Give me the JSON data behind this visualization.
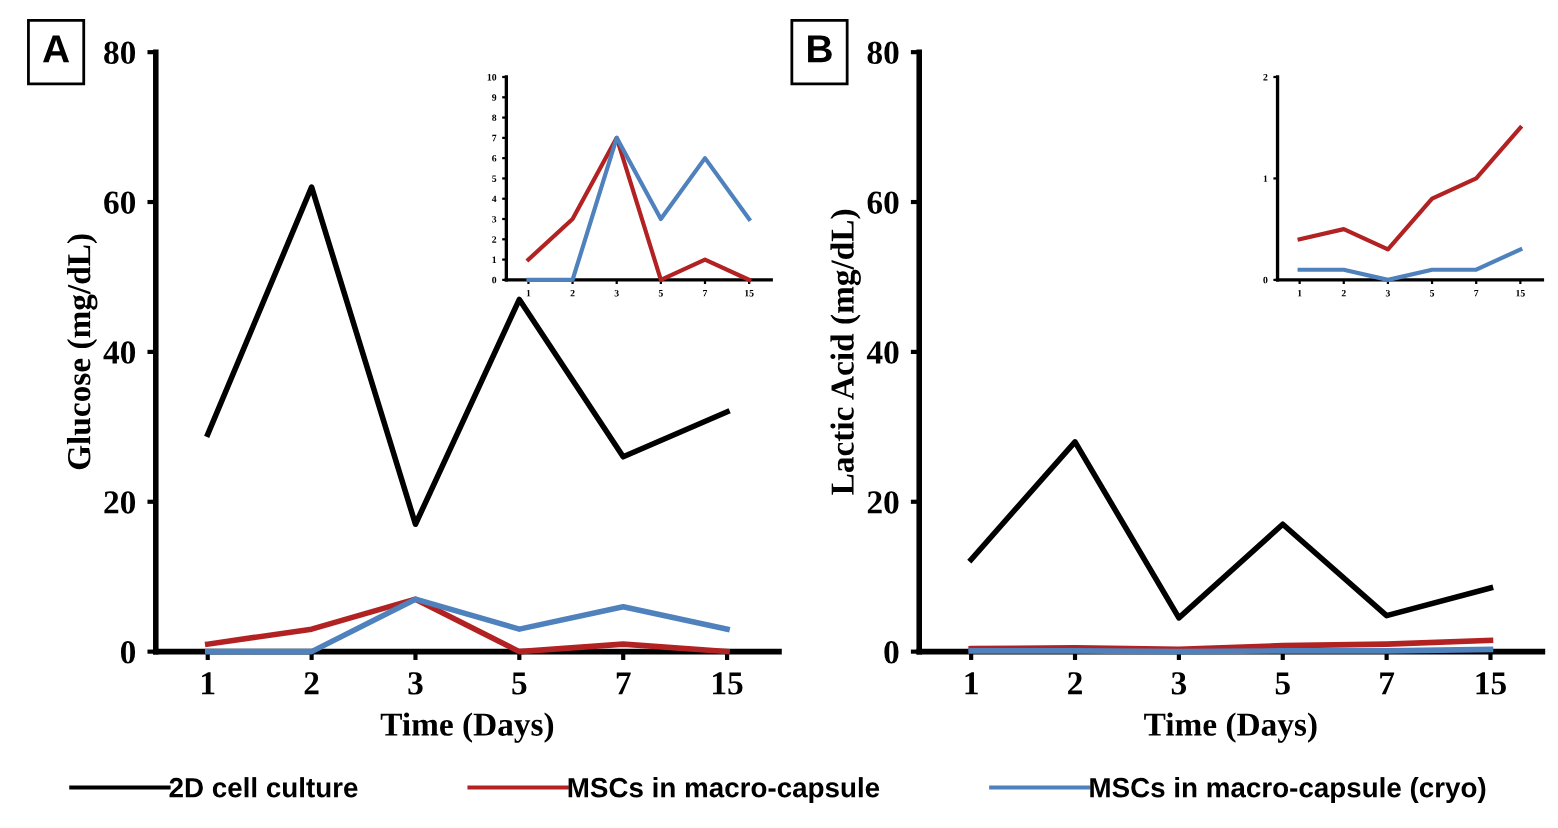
{
  "chart_data": [
    {
      "type": "line",
      "title": "A",
      "xlabel": "Time (Days)",
      "ylabel": "Glucose (mg/dL)",
      "categories": [
        "1",
        "2",
        "3",
        "5",
        "7",
        "15"
      ],
      "ylim": [
        0,
        80
      ],
      "yticks": [
        0,
        20,
        40,
        60,
        80
      ],
      "legend": "bottom",
      "grid": false,
      "series": [
        {
          "name": "2D cell culture",
          "color": "#000000",
          "values": [
            29,
            62,
            17,
            47,
            26,
            32
          ]
        },
        {
          "name": "MSCs in macro-capsule",
          "color": "#b22222",
          "values": [
            1,
            3,
            7,
            0,
            1,
            0
          ]
        },
        {
          "name": "MSCs in macro-capsule (cryo)",
          "color": "#4f81bd",
          "values": [
            0,
            0,
            7,
            3,
            6,
            3
          ]
        }
      ]
    },
    {
      "type": "line",
      "categories": [
        "1",
        "2",
        "3",
        "5",
        "7",
        "15"
      ],
      "ylim": [
        0,
        10
      ],
      "yticks": [
        0,
        1,
        2,
        3,
        4,
        5,
        6,
        7,
        8,
        9,
        10
      ],
      "grid": false,
      "series": [
        {
          "color": "#b22222",
          "values": [
            1,
            3,
            7,
            0,
            1,
            0
          ]
        },
        {
          "color": "#4f81bd",
          "values": [
            0,
            0,
            7,
            3,
            6,
            3
          ]
        }
      ]
    },
    {
      "type": "line",
      "title": "B",
      "xlabel": "Time (Days)",
      "ylabel": "Lactic Acid (mg/dL)",
      "categories": [
        "1",
        "2",
        "3",
        "5",
        "7",
        "15"
      ],
      "ylim": [
        0,
        80
      ],
      "yticks": [
        0,
        20,
        40,
        60,
        80
      ],
      "grid": false,
      "series": [
        {
          "color": "#000000",
          "values": [
            12.3,
            28,
            4.5,
            17,
            4.8,
            8.5
          ]
        },
        {
          "color": "#b22222",
          "values": [
            0.4,
            0.5,
            0.3,
            0.8,
            1.0,
            1.5
          ]
        },
        {
          "color": "#4f81bd",
          "values": [
            0.1,
            0.1,
            0,
            0.1,
            0.1,
            0.3
          ]
        }
      ]
    },
    {
      "type": "line",
      "categories": [
        "1",
        "2",
        "3",
        "5",
        "7",
        "15"
      ],
      "ylim": [
        0,
        2
      ],
      "yticks": [
        0,
        1,
        2
      ],
      "grid": false,
      "series": [
        {
          "color": "#b22222",
          "values": [
            0.4,
            0.5,
            0.3,
            0.8,
            1.0,
            1.5
          ]
        },
        {
          "color": "#4f81bd",
          "values": [
            0.1,
            0.1,
            0,
            0.1,
            0.1,
            0.3
          ]
        }
      ]
    }
  ]
}
